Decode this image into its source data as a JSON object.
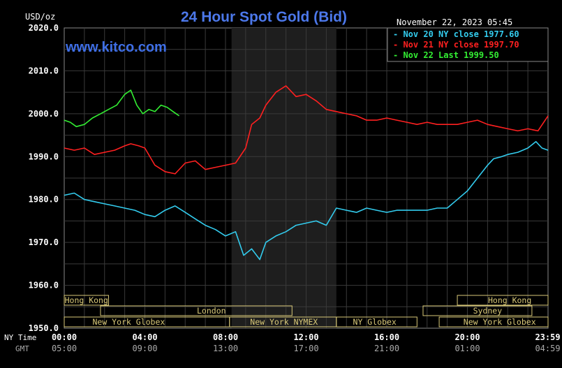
{
  "chart_data": {
    "type": "line",
    "title": "24 Hour Spot Gold (Bid)",
    "watermark": "www.kitco.com",
    "unit_label": "USD/oz",
    "timestamp": "November 22, 2023 05:45",
    "ylim": [
      1950,
      2020
    ],
    "xlim": [
      0,
      24
    ],
    "grid": true,
    "legend_position": "top-right",
    "y_ticks": [
      "2020.0",
      "2010.0",
      "2000.0",
      "1990.0",
      "1980.0",
      "1970.0",
      "1960.0",
      "1950.0"
    ],
    "y_tick_values": [
      2020,
      2010,
      2000,
      1990,
      1980,
      1970,
      1960,
      1950
    ],
    "x_tick_values": [
      0,
      4,
      8,
      12,
      16,
      20,
      23.983
    ],
    "x_ticks_ny": [
      "00:00",
      "04:00",
      "08:00",
      "12:00",
      "16:00",
      "20:00",
      "23:59"
    ],
    "x_ticks_gmt": [
      "05:00",
      "09:00",
      "13:00",
      "17:00",
      "21:00",
      "01:00",
      "04:59"
    ],
    "x_row_labels": {
      "ny": "NY Time",
      "gmt": "GMT"
    },
    "shaded_region": {
      "from": 8.3,
      "to": 13.5
    },
    "series": [
      {
        "name": "Nov 20 NY close 1977.60",
        "color": "#33ccee",
        "x": [
          0,
          0.5,
          1,
          1.5,
          2,
          2.5,
          3,
          3.5,
          4,
          4.5,
          5,
          5.5,
          6,
          6.5,
          7,
          7.5,
          8,
          8.5,
          8.9,
          9.3,
          9.7,
          10,
          10.5,
          11,
          11.5,
          12,
          12.5,
          13,
          13.5,
          14,
          14.5,
          15,
          15.5,
          16,
          16.5,
          17,
          17.5,
          18,
          18.5,
          19,
          19.5,
          20,
          20.5,
          21,
          21.3,
          21.7,
          22,
          22.5,
          23,
          23.4,
          23.7,
          24
        ],
        "values": [
          1981.0,
          1981.5,
          1980.0,
          1979.5,
          1979.0,
          1978.5,
          1978.0,
          1977.5,
          1976.5,
          1976.0,
          1977.5,
          1978.5,
          1977.0,
          1975.5,
          1974.0,
          1973.0,
          1971.5,
          1972.5,
          1967.0,
          1968.5,
          1966.0,
          1970.0,
          1971.5,
          1972.5,
          1974.0,
          1974.5,
          1975.0,
          1974.0,
          1978.0,
          1977.5,
          1977.0,
          1978.0,
          1977.5,
          1977.0,
          1977.5,
          1977.5,
          1977.5,
          1977.5,
          1978.0,
          1978.0,
          1980.0,
          1982.0,
          1985.0,
          1988.0,
          1989.5,
          1990.0,
          1990.5,
          1991.0,
          1992.0,
          1993.5,
          1992.0,
          1991.5
        ]
      },
      {
        "name": "Nov 21 NY close 1997.70",
        "color": "#ff2020",
        "x": [
          0,
          0.5,
          1,
          1.5,
          2,
          2.5,
          3,
          3.3,
          3.7,
          4,
          4.5,
          5,
          5.5,
          6,
          6.5,
          7,
          7.5,
          8,
          8.5,
          9,
          9.3,
          9.7,
          10,
          10.5,
          11,
          11.5,
          12,
          12.5,
          13,
          13.5,
          14,
          14.5,
          15,
          15.5,
          16,
          16.5,
          17,
          17.5,
          18,
          18.5,
          19,
          19.5,
          20,
          20.5,
          21,
          21.5,
          22,
          22.5,
          23,
          23.5,
          24
        ],
        "values": [
          1992.0,
          1991.5,
          1992.0,
          1990.5,
          1991.0,
          1991.5,
          1992.5,
          1993.0,
          1992.5,
          1992.0,
          1988.0,
          1986.5,
          1986.0,
          1988.5,
          1989.0,
          1987.0,
          1987.5,
          1988.0,
          1988.5,
          1992.0,
          1997.5,
          1999.0,
          2002.0,
          2005.0,
          2006.5,
          2004.0,
          2004.5,
          2003.0,
          2001.0,
          2000.5,
          2000.0,
          1999.5,
          1998.5,
          1998.5,
          1999.0,
          1998.5,
          1998.0,
          1997.5,
          1998.0,
          1997.5,
          1997.5,
          1997.5,
          1998.0,
          1998.5,
          1997.5,
          1997.0,
          1996.5,
          1996.0,
          1996.5,
          1996.0,
          1999.5
        ]
      },
      {
        "name": "Nov 22 Last 1999.50",
        "color": "#33ee33",
        "x": [
          0,
          0.3,
          0.6,
          1,
          1.4,
          1.8,
          2.2,
          2.6,
          3,
          3.3,
          3.6,
          3.9,
          4.2,
          4.5,
          4.8,
          5.1,
          5.4,
          5.7
        ],
        "values": [
          1998.5,
          1998.0,
          1997.0,
          1997.5,
          1999.0,
          2000.0,
          2001.0,
          2002.0,
          2004.5,
          2005.5,
          2002.0,
          2000.0,
          2001.0,
          2000.5,
          2002.0,
          2001.5,
          2000.5,
          1999.5
        ]
      }
    ],
    "sessions": [
      {
        "name": "Hong Kong",
        "row": 0,
        "from": 0,
        "to": 2.2
      },
      {
        "name": "London",
        "row": 1,
        "from": 1.8,
        "to": 11.3
      },
      {
        "name": "New York Globex",
        "row": 2,
        "from": 0,
        "to": 4.2
      },
      {
        "name": "New York Globex",
        "row": 2,
        "from": 4.2,
        "to": 8.2
      },
      {
        "name": "New York NYMEX",
        "row": 2,
        "from": 8.2,
        "to": 13.5
      },
      {
        "name": "NY Globex",
        "row": 2,
        "from": 13.5,
        "to": 17.5
      },
      {
        "name": "Hong Kong",
        "row": 0,
        "from": 19.5,
        "to": 24
      },
      {
        "name": "Sydney",
        "row": 1,
        "from": 17.8,
        "to": 23.2
      },
      {
        "name": "New York Globex",
        "row": 2,
        "from": 18.6,
        "to": 24
      }
    ],
    "session_display": [
      {
        "label": "Hong Kong",
        "row": 0,
        "from": 0,
        "to": 2.2,
        "text_at": 1.1
      },
      {
        "label": "London",
        "row": 1,
        "from": 1.8,
        "to": 11.3,
        "text_at": 7.3
      },
      {
        "label": "New York Globex",
        "row": 2,
        "from": 0,
        "to": 8.2,
        "text_at": 3.2
      },
      {
        "label": "New York NYMEX",
        "row": 2,
        "from": 8.2,
        "to": 13.5,
        "text_at": 10.9
      },
      {
        "label": "NY Globex",
        "row": 2,
        "from": 13.5,
        "to": 17.5,
        "text_at": 15.4
      },
      {
        "label": "Hong Kong",
        "row": 0,
        "from": 19.5,
        "to": 24,
        "text_at": 22.1
      },
      {
        "label": "Sydney",
        "row": 1,
        "from": 17.8,
        "to": 23.2,
        "text_at": 21.0
      },
      {
        "label": "New York Globex",
        "row": 2,
        "from": 18.6,
        "to": 24,
        "text_at": 21.6
      }
    ]
  }
}
